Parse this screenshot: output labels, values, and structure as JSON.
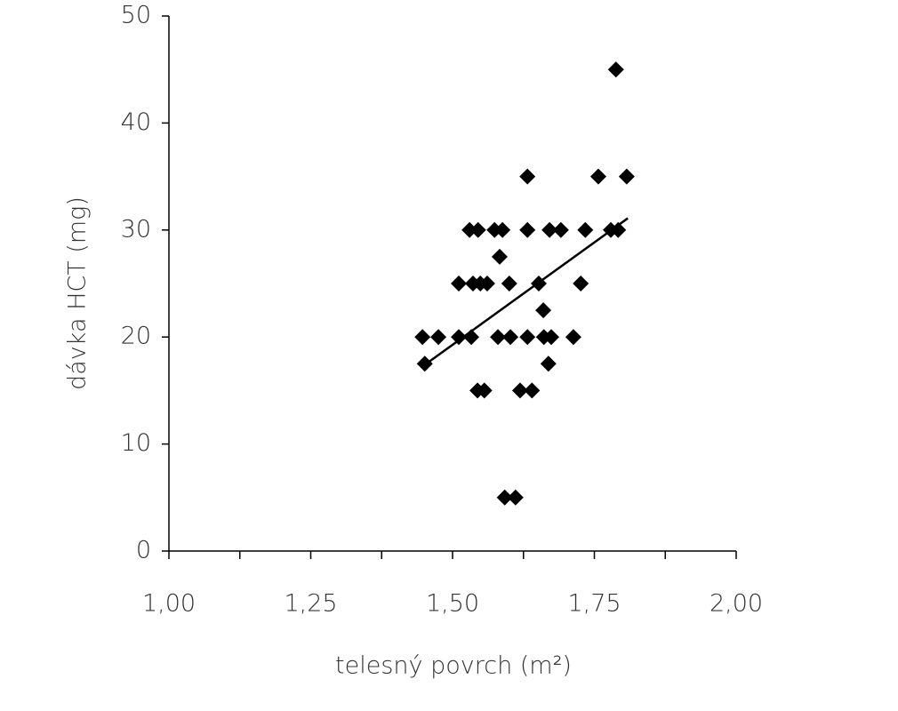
{
  "chart_data": {
    "type": "scatter",
    "x_label": "telesný povrch (m²)",
    "y_label": "dávka HCT (mg)",
    "xlim": [
      1.0,
      2.0
    ],
    "ylim": [
      0,
      50
    ],
    "xticks": [
      {
        "value": 1.0,
        "label": "1,00"
      },
      {
        "value": 1.25,
        "label": "1,25"
      },
      {
        "value": 1.5,
        "label": "1,50"
      },
      {
        "value": 1.75,
        "label": "1,75"
      },
      {
        "value": 2.0,
        "label": "2,00"
      }
    ],
    "xminor_ticks": [
      1.125,
      1.375,
      1.625,
      1.875
    ],
    "yticks": [
      0,
      10,
      20,
      30,
      40,
      50
    ],
    "color": "#000000",
    "x": [
      1.447,
      1.475,
      1.451,
      1.511,
      1.533,
      1.511,
      1.536,
      1.549,
      1.561,
      1.53,
      1.545,
      1.574,
      1.588,
      1.583,
      1.544,
      1.556,
      1.58,
      1.602,
      1.6,
      1.592,
      1.611,
      1.632,
      1.632,
      1.632,
      1.619,
      1.64,
      1.652,
      1.66,
      1.661,
      1.674,
      1.669,
      1.671,
      1.691,
      1.713,
      1.726,
      1.734,
      1.757,
      1.779,
      1.792,
      1.788,
      1.807
    ],
    "y": [
      20,
      20,
      17.5,
      20,
      20,
      25,
      25,
      25,
      25,
      30,
      30,
      30,
      30,
      27.5,
      15,
      15,
      20,
      20,
      25,
      5,
      5,
      35,
      30,
      20,
      15,
      15,
      25,
      22.5,
      20,
      20,
      17.5,
      30,
      30,
      20,
      25,
      30,
      35,
      30,
      30,
      45,
      35
    ],
    "trendline": {
      "x": [
        1.451,
        1.809
      ],
      "y": [
        17.4,
        31.1
      ]
    }
  }
}
